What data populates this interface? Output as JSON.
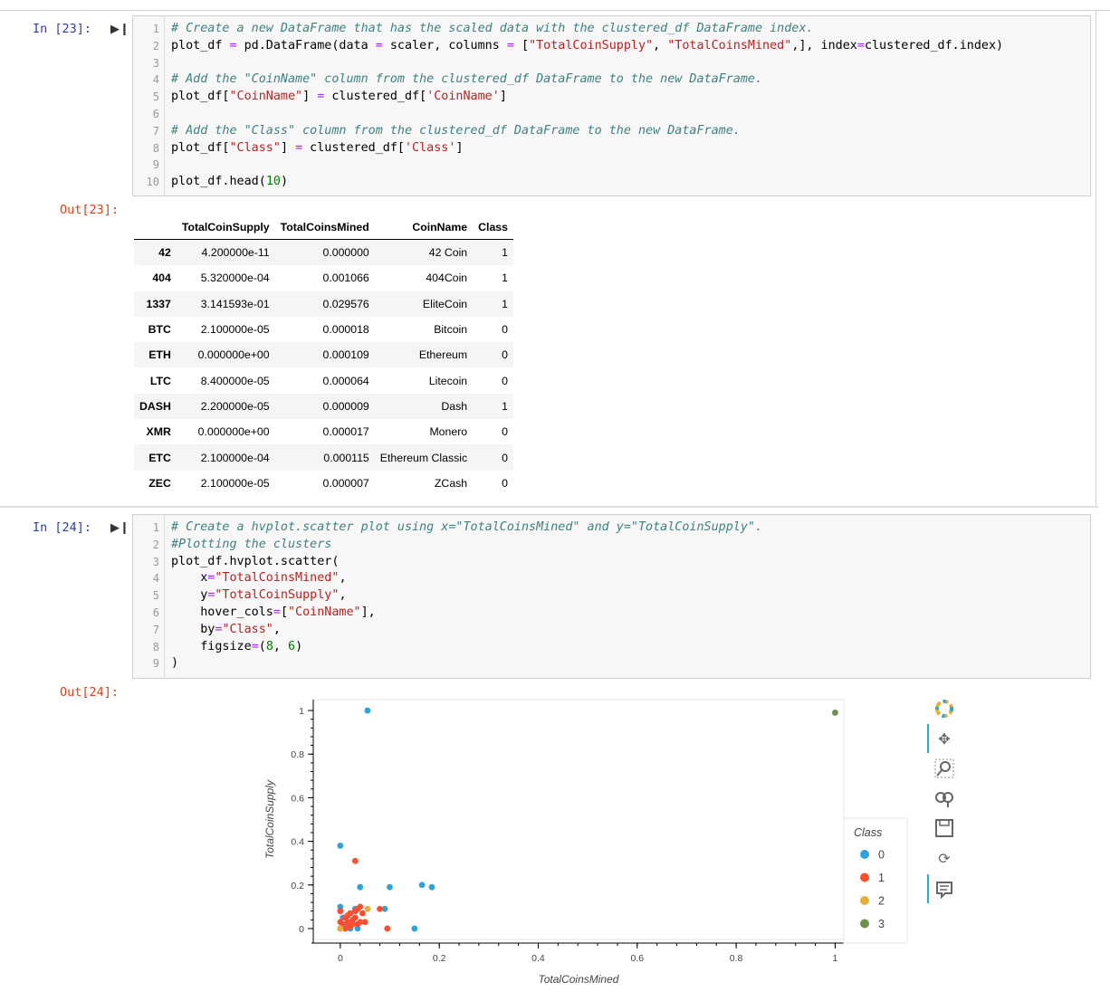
{
  "cell23": {
    "in_prompt": "In [23]:",
    "out_prompt": "Out[23]:",
    "lines": [
      {
        "n": "1",
        "parts": [
          [
            "cm",
            "# Create a new DataFrame that has the scaled data with the clustered_df DataFrame index."
          ]
        ]
      },
      {
        "n": "2",
        "parts": [
          [
            "",
            "plot_df "
          ],
          [
            "op",
            "="
          ],
          [
            "",
            " pd.DataFrame(data "
          ],
          [
            "op",
            "="
          ],
          [
            "",
            " scaler, columns "
          ],
          [
            "op",
            "="
          ],
          [
            "",
            " ["
          ],
          [
            "st",
            "\"TotalCoinSupply\""
          ],
          [
            "",
            ", "
          ],
          [
            "st",
            "\"TotalCoinsMined\""
          ],
          [
            "",
            ",], index"
          ],
          [
            "op",
            "="
          ],
          [
            "",
            "clustered_df.index)"
          ]
        ]
      },
      {
        "n": "3",
        "parts": []
      },
      {
        "n": "4",
        "parts": [
          [
            "cm",
            "# Add the \"CoinName\" column from the clustered_df DataFrame to the new DataFrame."
          ]
        ]
      },
      {
        "n": "5",
        "parts": [
          [
            "",
            "plot_df["
          ],
          [
            "st",
            "\"CoinName\""
          ],
          [
            "",
            "] "
          ],
          [
            "op",
            "="
          ],
          [
            "",
            " clustered_df["
          ],
          [
            "st",
            "'CoinName'"
          ],
          [
            "",
            "]"
          ]
        ]
      },
      {
        "n": "6",
        "parts": []
      },
      {
        "n": "7",
        "parts": [
          [
            "cm",
            "# Add the \"Class\" column from the clustered_df DataFrame to the new DataFrame."
          ]
        ]
      },
      {
        "n": "8",
        "parts": [
          [
            "",
            "plot_df["
          ],
          [
            "st",
            "\"Class\""
          ],
          [
            "",
            "] "
          ],
          [
            "op",
            "="
          ],
          [
            "",
            " clustered_df["
          ],
          [
            "st",
            "'Class'"
          ],
          [
            "",
            "]"
          ]
        ]
      },
      {
        "n": "9",
        "parts": []
      },
      {
        "n": "10",
        "parts": [
          [
            "",
            "plot_df.head("
          ],
          [
            "nm",
            "10"
          ],
          [
            "",
            ")"
          ]
        ]
      }
    ]
  },
  "table": {
    "columns": [
      "",
      "TotalCoinSupply",
      "TotalCoinsMined",
      "CoinName",
      "Class"
    ],
    "rows": [
      [
        "42",
        "4.200000e-11",
        "0.000000",
        "42 Coin",
        "1"
      ],
      [
        "404",
        "5.320000e-04",
        "0.001066",
        "404Coin",
        "1"
      ],
      [
        "1337",
        "3.141593e-01",
        "0.029576",
        "EliteCoin",
        "1"
      ],
      [
        "BTC",
        "2.100000e-05",
        "0.000018",
        "Bitcoin",
        "0"
      ],
      [
        "ETH",
        "0.000000e+00",
        "0.000109",
        "Ethereum",
        "0"
      ],
      [
        "LTC",
        "8.400000e-05",
        "0.000064",
        "Litecoin",
        "0"
      ],
      [
        "DASH",
        "2.200000e-05",
        "0.000009",
        "Dash",
        "1"
      ],
      [
        "XMR",
        "0.000000e+00",
        "0.000017",
        "Monero",
        "0"
      ],
      [
        "ETC",
        "2.100000e-04",
        "0.000115",
        "Ethereum Classic",
        "0"
      ],
      [
        "ZEC",
        "2.100000e-05",
        "0.000007",
        "ZCash",
        "0"
      ]
    ]
  },
  "cell24": {
    "in_prompt": "In [24]:",
    "out_prompt": "Out[24]:",
    "lines": [
      {
        "n": "1",
        "parts": [
          [
            "cm",
            "# Create a hvplot.scatter plot using x=\"TotalCoinsMined\" and y=\"TotalCoinSupply\"."
          ]
        ]
      },
      {
        "n": "2",
        "parts": [
          [
            "cm",
            "#Plotting the clusters"
          ]
        ]
      },
      {
        "n": "3",
        "parts": [
          [
            "",
            "plot_df.hvplot.scatter("
          ]
        ]
      },
      {
        "n": "4",
        "parts": [
          [
            "",
            "    x"
          ],
          [
            "op",
            "="
          ],
          [
            "st",
            "\"TotalCoinsMined\""
          ],
          [
            "",
            ","
          ]
        ]
      },
      {
        "n": "5",
        "parts": [
          [
            "",
            "    y"
          ],
          [
            "op",
            "="
          ],
          [
            "st",
            "\"TotalCoinSupply\""
          ],
          [
            "",
            ","
          ]
        ]
      },
      {
        "n": "6",
        "parts": [
          [
            "",
            "    hover_cols"
          ],
          [
            "op",
            "="
          ],
          [
            "",
            "["
          ],
          [
            "st",
            "\"CoinName\""
          ],
          [
            "",
            "],"
          ]
        ]
      },
      {
        "n": "7",
        "parts": [
          [
            "",
            "    by"
          ],
          [
            "op",
            "="
          ],
          [
            "st",
            "\"Class\""
          ],
          [
            "",
            ","
          ]
        ]
      },
      {
        "n": "8",
        "parts": [
          [
            "",
            "    figsize"
          ],
          [
            "op",
            "="
          ],
          [
            "",
            "("
          ],
          [
            "nm",
            "8"
          ],
          [
            "",
            ", "
          ],
          [
            "nm",
            "6"
          ],
          [
            "",
            ")"
          ]
        ]
      },
      {
        "n": "9",
        "parts": [
          [
            "",
            ")"
          ]
        ]
      }
    ]
  },
  "chart_data": {
    "type": "scatter",
    "xlabel": "TotalCoinsMined",
    "ylabel": "TotalCoinSupply",
    "xlim": [
      -0.04,
      1.0
    ],
    "ylim": [
      -0.05,
      1.05
    ],
    "x_ticks": [
      "0",
      "0.2",
      "0.4",
      "0.6",
      "0.8",
      "1"
    ],
    "y_ticks": [
      "0",
      "0.2",
      "0.4",
      "0.6",
      "0.8",
      "1"
    ],
    "legend_title": "Class",
    "legend_position": "right",
    "series": [
      {
        "name": "0",
        "color": "#30a2da",
        "points": [
          [
            0.055,
            1.0
          ],
          [
            0.0,
            0.38
          ],
          [
            0.04,
            0.19
          ],
          [
            0.1,
            0.19
          ],
          [
            0.165,
            0.2
          ],
          [
            0.185,
            0.19
          ],
          [
            0.0,
            0.1
          ],
          [
            0.03,
            0.09
          ],
          [
            0.09,
            0.09
          ],
          [
            0.15,
            0.0
          ],
          [
            0.0,
            0.0
          ],
          [
            0.01,
            0.02
          ],
          [
            0.02,
            0.0
          ],
          [
            0.035,
            0.0
          ],
          [
            0.005,
            0.05
          ]
        ]
      },
      {
        "name": "1",
        "color": "#fc4f30",
        "points": [
          [
            0.03,
            0.31
          ],
          [
            0.0,
            0.08
          ],
          [
            0.015,
            0.06
          ],
          [
            0.025,
            0.04
          ],
          [
            0.03,
            0.08
          ],
          [
            0.035,
            0.09
          ],
          [
            0.04,
            0.1
          ],
          [
            0.045,
            0.07
          ],
          [
            0.05,
            0.03
          ],
          [
            0.08,
            0.09
          ],
          [
            0.095,
            0.0
          ],
          [
            0.005,
            0.02
          ],
          [
            0.01,
            0.0
          ],
          [
            0.02,
            0.01
          ],
          [
            0.025,
            0.02
          ],
          [
            0.03,
            0.05
          ],
          [
            0.015,
            0.03
          ],
          [
            0.04,
            0.03
          ],
          [
            0.0,
            0.03
          ],
          [
            0.035,
            0.02
          ],
          [
            0.02,
            0.07
          ],
          [
            0.01,
            0.05
          ]
        ]
      },
      {
        "name": "2",
        "color": "#e5ae38",
        "points": [
          [
            0.055,
            0.09
          ],
          [
            0.0,
            0.0
          ]
        ]
      },
      {
        "name": "3",
        "color": "#6d904f",
        "points": [
          [
            1.0,
            0.99
          ]
        ]
      }
    ]
  },
  "toolbar": {
    "tools": [
      "bokeh-logo-icon",
      "pan-icon",
      "box-zoom-icon",
      "wheel-zoom-icon",
      "save-icon",
      "reset-icon",
      "hover-icon"
    ]
  }
}
